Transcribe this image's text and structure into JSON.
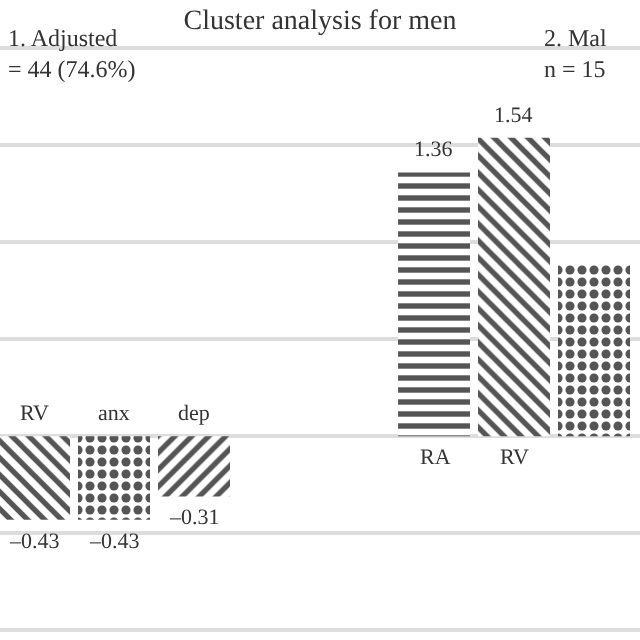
{
  "chart_data": {
    "type": "bar",
    "title": "Cluster analysis for men",
    "categories": [
      "RV",
      "anx",
      "dep",
      null,
      null,
      "RA",
      "RV",
      null
    ],
    "values": [
      -0.43,
      -0.43,
      -0.31,
      null,
      null,
      1.36,
      1.54,
      0.89
    ],
    "value_labels": [
      "–0.43",
      "–0.43",
      "–0.31",
      null,
      null,
      "1.36",
      "1.54",
      null
    ],
    "color": "#555555",
    "ylim": [
      -1.05,
      2.25
    ],
    "yticks": [
      {
        "value": -1.0,
        "label": null
      },
      {
        "value": -0.5,
        "label": null
      },
      {
        "value": 0,
        "label": null
      },
      {
        "value": 0.5,
        "label": null
      },
      {
        "value": 1.0,
        "label": null
      },
      {
        "value": 1.5,
        "label": null
      },
      {
        "value": 2.0,
        "label": null
      }
    ],
    "grid": "y",
    "tick_labels": false,
    "annotations": [
      "1. Adjusted\n= 44 (74.6%)",
      "2. Mal\nn = 15"
    ]
  }
}
